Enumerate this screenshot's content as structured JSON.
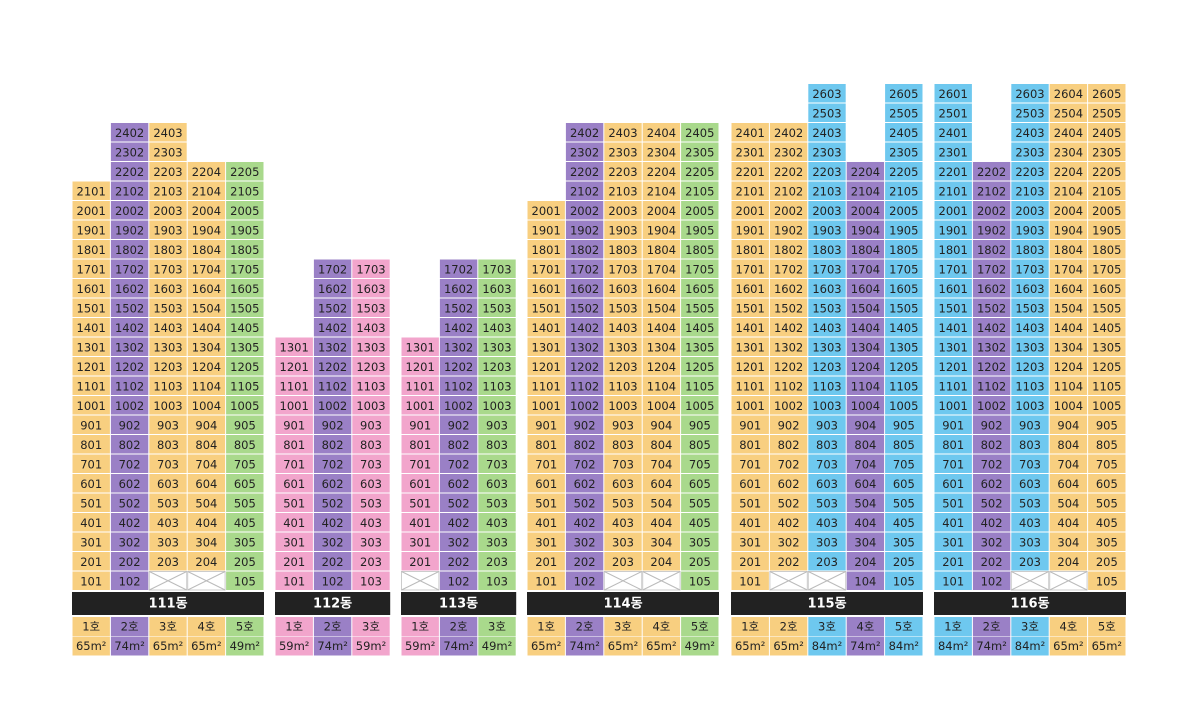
{
  "buildings": [
    {
      "name": "111동",
      "columns": [
        {
          "line": "1호",
          "area": "65m²",
          "color": "#f8cf80",
          "units": [
            101,
            201,
            301,
            401,
            501,
            601,
            701,
            801,
            901,
            1001,
            1101,
            1201,
            1301,
            1401,
            1501,
            1601,
            1701,
            1801,
            1901,
            2001,
            2101
          ]
        },
        {
          "line": "2호",
          "area": "74m²",
          "color": "#9a80c6",
          "units": [
            102,
            202,
            302,
            402,
            502,
            602,
            702,
            802,
            902,
            1002,
            1102,
            1202,
            1302,
            1402,
            1502,
            1602,
            1702,
            1802,
            1902,
            2002,
            2102,
            2202,
            2302,
            2402
          ]
        },
        {
          "line": "3호",
          "area": "65m²",
          "color": "#f8cf80",
          "units": [
            203,
            303,
            403,
            503,
            603,
            703,
            803,
            903,
            1003,
            1103,
            1203,
            1303,
            1403,
            1503,
            1603,
            1703,
            1803,
            1903,
            2003,
            2103,
            2203,
            2303,
            2403
          ]
        },
        {
          "line": "4호",
          "area": "65m²",
          "color": "#f8cf80",
          "units": [
            204,
            304,
            404,
            504,
            604,
            704,
            804,
            904,
            1004,
            1104,
            1204,
            1304,
            1404,
            1504,
            1604,
            1704,
            1804,
            1904,
            2004,
            2104,
            2204
          ]
        },
        {
          "line": "5호",
          "area": "49m²",
          "color": "#a9d98c",
          "units": [
            105,
            205,
            305,
            405,
            505,
            605,
            705,
            805,
            905,
            1005,
            1105,
            1205,
            1305,
            1405,
            1505,
            1605,
            1705,
            1805,
            1905,
            2005,
            2105,
            2205
          ]
        }
      ]
    },
    {
      "name": "112동",
      "columns": [
        {
          "line": "1호",
          "area": "59m²",
          "color": "#f2a5cc",
          "units": [
            101,
            201,
            301,
            401,
            501,
            601,
            701,
            801,
            901,
            1001,
            1101,
            1201,
            1301
          ]
        },
        {
          "line": "2호",
          "area": "74m²",
          "color": "#9a80c6",
          "units": [
            102,
            202,
            302,
            402,
            502,
            602,
            702,
            802,
            902,
            1002,
            1102,
            1202,
            1302,
            1402,
            1502,
            1602,
            1702
          ]
        },
        {
          "line": "3호",
          "area": "59m²",
          "color": "#f2a5cc",
          "units": [
            103,
            203,
            303,
            403,
            503,
            603,
            703,
            803,
            903,
            1003,
            1103,
            1203,
            1303,
            1403,
            1503,
            1603,
            1703
          ]
        }
      ]
    },
    {
      "name": "113동",
      "columns": [
        {
          "line": "1호",
          "area": "59m²",
          "color": "#f2a5cc",
          "units": [
            201,
            301,
            401,
            501,
            601,
            701,
            801,
            901,
            1001,
            1101,
            1201,
            1301
          ]
        },
        {
          "line": "2호",
          "area": "74m²",
          "color": "#9a80c6",
          "units": [
            102,
            202,
            302,
            402,
            502,
            602,
            702,
            802,
            902,
            1002,
            1102,
            1202,
            1302,
            1402,
            1502,
            1602,
            1702
          ]
        },
        {
          "line": "3호",
          "area": "49m²",
          "color": "#a9d98c",
          "units": [
            103,
            203,
            303,
            403,
            503,
            603,
            703,
            803,
            903,
            1003,
            1103,
            1203,
            1303,
            1403,
            1503,
            1603,
            1703
          ]
        }
      ]
    },
    {
      "name": "114동",
      "columns": [
        {
          "line": "1호",
          "area": "65m²",
          "color": "#f8cf80",
          "units": [
            101,
            201,
            301,
            401,
            501,
            601,
            701,
            801,
            901,
            1001,
            1101,
            1201,
            1301,
            1401,
            1501,
            1601,
            1701,
            1801,
            1901,
            2001
          ]
        },
        {
          "line": "2호",
          "area": "74m²",
          "color": "#9a80c6",
          "units": [
            102,
            202,
            302,
            402,
            502,
            602,
            702,
            802,
            902,
            1002,
            1102,
            1202,
            1302,
            1402,
            1502,
            1602,
            1702,
            1802,
            1902,
            2002,
            2102,
            2202,
            2302,
            2402
          ]
        },
        {
          "line": "3호",
          "area": "65m²",
          "color": "#f8cf80",
          "units": [
            203,
            303,
            403,
            503,
            603,
            703,
            803,
            903,
            1003,
            1103,
            1203,
            1303,
            1403,
            1503,
            1603,
            1703,
            1803,
            1903,
            2003,
            2103,
            2203,
            2303,
            2403
          ]
        },
        {
          "line": "4호",
          "area": "65m²",
          "color": "#f8cf80",
          "units": [
            204,
            304,
            404,
            504,
            604,
            704,
            804,
            904,
            1004,
            1104,
            1204,
            1304,
            1404,
            1504,
            1604,
            1704,
            1804,
            1904,
            2004,
            2104,
            2204,
            2304,
            2404
          ]
        },
        {
          "line": "5호",
          "area": "49m²",
          "color": "#a9d98c",
          "units": [
            105,
            205,
            305,
            405,
            505,
            605,
            705,
            805,
            905,
            1005,
            1105,
            1205,
            1305,
            1405,
            1505,
            1605,
            1705,
            1805,
            1905,
            2005,
            2105,
            2205,
            2305,
            2405
          ]
        }
      ]
    },
    {
      "name": "115동",
      "columns": [
        {
          "line": "1호",
          "area": "65m²",
          "color": "#f8cf80",
          "units": [
            101,
            201,
            301,
            401,
            501,
            601,
            701,
            801,
            901,
            1001,
            1101,
            1201,
            1301,
            1401,
            1501,
            1601,
            1701,
            1801,
            1901,
            2001,
            2101,
            2201,
            2301,
            2401
          ]
        },
        {
          "line": "2호",
          "area": "65m²",
          "color": "#f8cf80",
          "units": [
            202,
            302,
            402,
            502,
            602,
            702,
            802,
            902,
            1002,
            1102,
            1202,
            1302,
            1402,
            1502,
            1602,
            1702,
            1802,
            1902,
            2002,
            2102,
            2202,
            2302,
            2402
          ]
        },
        {
          "line": "3호",
          "area": "84m²",
          "color": "#6ec8ef",
          "units": [
            203,
            303,
            403,
            503,
            603,
            703,
            803,
            903,
            1003,
            1103,
            1203,
            1303,
            1403,
            1503,
            1603,
            1703,
            1803,
            1903,
            2003,
            2103,
            2203,
            2303,
            2403,
            2503,
            2603
          ]
        },
        {
          "line": "4호",
          "area": "74m²",
          "color": "#9a80c6",
          "units": [
            104,
            204,
            304,
            404,
            504,
            604,
            704,
            804,
            904,
            1004,
            1104,
            1204,
            1304,
            1404,
            1504,
            1604,
            1704,
            1804,
            1904,
            2004,
            2104,
            2204
          ]
        },
        {
          "line": "5호",
          "area": "84m²",
          "color": "#6ec8ef",
          "units": [
            105,
            205,
            305,
            405,
            505,
            605,
            705,
            805,
            905,
            1005,
            1105,
            1205,
            1305,
            1405,
            1505,
            1605,
            1705,
            1805,
            1905,
            2005,
            2105,
            2205,
            2305,
            2405,
            2505,
            2605
          ]
        }
      ]
    },
    {
      "name": "116동",
      "columns": [
        {
          "line": "1호",
          "area": "84m²",
          "color": "#6ec8ef",
          "units": [
            101,
            201,
            301,
            401,
            501,
            601,
            701,
            801,
            901,
            1001,
            1101,
            1201,
            1301,
            1401,
            1501,
            1601,
            1701,
            1801,
            1901,
            2001,
            2101,
            2201,
            2301,
            2401,
            2501,
            2601
          ]
        },
        {
          "line": "2호",
          "area": "74m²",
          "color": "#9a80c6",
          "units": [
            102,
            202,
            302,
            402,
            502,
            602,
            702,
            802,
            902,
            1002,
            1102,
            1202,
            1302,
            1402,
            1502,
            1602,
            1702,
            1802,
            1902,
            2002,
            2102,
            2202
          ]
        },
        {
          "line": "3호",
          "area": "84m²",
          "color": "#6ec8ef",
          "units": [
            203,
            303,
            403,
            503,
            603,
            703,
            803,
            903,
            1003,
            1103,
            1203,
            1303,
            1403,
            1503,
            1603,
            1703,
            1803,
            1903,
            2003,
            2103,
            2203,
            2303,
            2403,
            2503,
            2603
          ]
        },
        {
          "line": "4호",
          "area": "65m²",
          "color": "#f8cf80",
          "units": [
            204,
            304,
            404,
            504,
            604,
            704,
            804,
            904,
            1004,
            1104,
            1204,
            1304,
            1404,
            1504,
            1604,
            1704,
            1804,
            1904,
            2004,
            2104,
            2204,
            2304,
            2404,
            2504,
            2604
          ]
        },
        {
          "line": "5호",
          "area": "65m²",
          "color": "#f8cf80",
          "units": [
            105,
            205,
            305,
            405,
            505,
            605,
            705,
            805,
            905,
            1005,
            1105,
            1205,
            1305,
            1405,
            1505,
            1605,
            1705,
            1805,
            1905,
            2005,
            2105,
            2205,
            2305,
            2405,
            2505,
            2605
          ]
        }
      ]
    }
  ]
}
